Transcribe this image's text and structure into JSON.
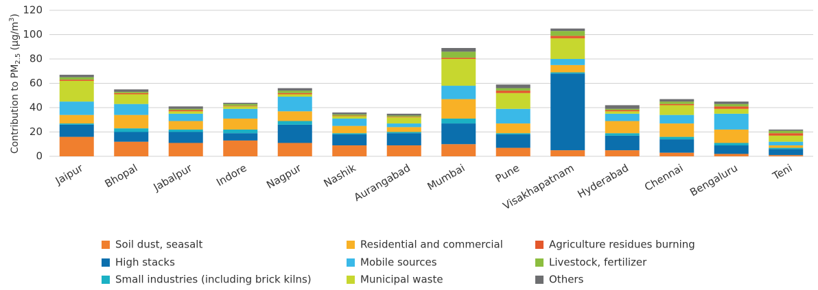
{
  "chart_data": {
    "type": "stacked_bar",
    "y_label": {
      "text": "Contribution to PM",
      "sub": "2.5",
      "unit": " (µg/m",
      "sup": "3",
      "end": ")"
    },
    "categories": [
      "Jaipur",
      "Bhopal",
      "Jabalpur",
      "Indore",
      "Nagpur",
      "Nashik",
      "Aurangabad",
      "Mumbai",
      "Pune",
      "Visakhapatnam",
      "Hyderabad",
      "Chennai",
      "Bengaluru",
      "Teni"
    ],
    "series": [
      {
        "name": "Soil dust, seasalt",
        "color": "#f07f2e",
        "values": [
          16,
          12,
          11,
          13,
          11,
          9,
          9,
          10,
          7,
          5,
          5,
          3,
          2,
          1
        ]
      },
      {
        "name": "High stacks",
        "color": "#0b6fad",
        "values": [
          10,
          8,
          9,
          6,
          15,
          9,
          10,
          17,
          11,
          63,
          12,
          11,
          7,
          5
        ]
      },
      {
        "name": "Small industries (including brick kilns)",
        "color": "#1bb1c4",
        "values": [
          1,
          3,
          2,
          3,
          3,
          1,
          1,
          4,
          1,
          1,
          2,
          2,
          2,
          1
        ]
      },
      {
        "name": "Residential and commercial",
        "color": "#f8b126",
        "values": [
          7,
          11,
          7,
          9,
          8,
          6,
          4,
          16,
          8,
          6,
          10,
          11,
          11,
          2
        ]
      },
      {
        "name": "Mobile sources",
        "color": "#3ab9e8",
        "values": [
          11,
          9,
          6,
          8,
          12,
          6,
          3,
          11,
          12,
          5,
          6,
          7,
          13,
          3
        ]
      },
      {
        "name": "Municipal waste",
        "color": "#c7d72f",
        "values": [
          17,
          8,
          2,
          2,
          2,
          2,
          5,
          22,
          13,
          17,
          2,
          8,
          4,
          5
        ]
      },
      {
        "name": "Agriculture residues burning",
        "color": "#e3572b",
        "values": [
          1,
          1,
          1,
          0.5,
          1,
          0.5,
          0.5,
          1,
          2,
          2,
          1,
          1,
          2,
          2
        ]
      },
      {
        "name": "Livestock, fertilizer",
        "color": "#8cbd3f",
        "values": [
          2,
          1,
          1,
          1.5,
          2,
          1,
          1,
          5,
          2,
          4,
          1,
          2,
          2,
          2
        ]
      },
      {
        "name": "Others",
        "color": "#6d6e70",
        "values": [
          2,
          2,
          2,
          1,
          2,
          1.5,
          1.5,
          3,
          3,
          2,
          3,
          2,
          2,
          1
        ]
      }
    ],
    "ylim": [
      0,
      120
    ],
    "yticks": [
      0,
      20,
      40,
      60,
      80,
      100,
      120
    ],
    "grid": true
  }
}
